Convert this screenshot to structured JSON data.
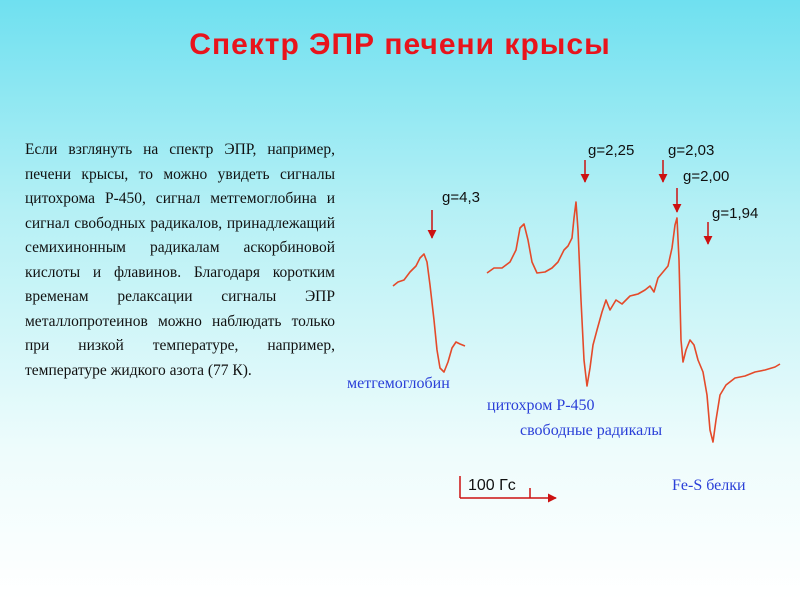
{
  "header": {
    "title": "Спектр ЭПР печени крысы"
  },
  "body": {
    "text": "Если взглянуть на спектр ЭПР, например, печени крысы, то можно увидеть сигналы цитохрома Р-450, сигнал метгемоглобина и сигнал свободных радикалов, принадлежащий семихинонным радикалам аскорбиновой кислоты и флавинов. Благодаря коротким временам релаксации сигналы ЭПР металлопротеинов можно наблюдать только при низкой температуре, например, температуре жидкого азота (77 К)."
  },
  "spectrum": {
    "g_labels": [
      "g=4,3",
      "g=2,25",
      "g=2,03",
      "g=2,00",
      "g=1,94"
    ],
    "signal_labels": [
      "метгемоглобин",
      "цитохром Р-450",
      "свободные радикалы",
      "Fe-S белки"
    ],
    "scale_label": "100 Гс"
  }
}
